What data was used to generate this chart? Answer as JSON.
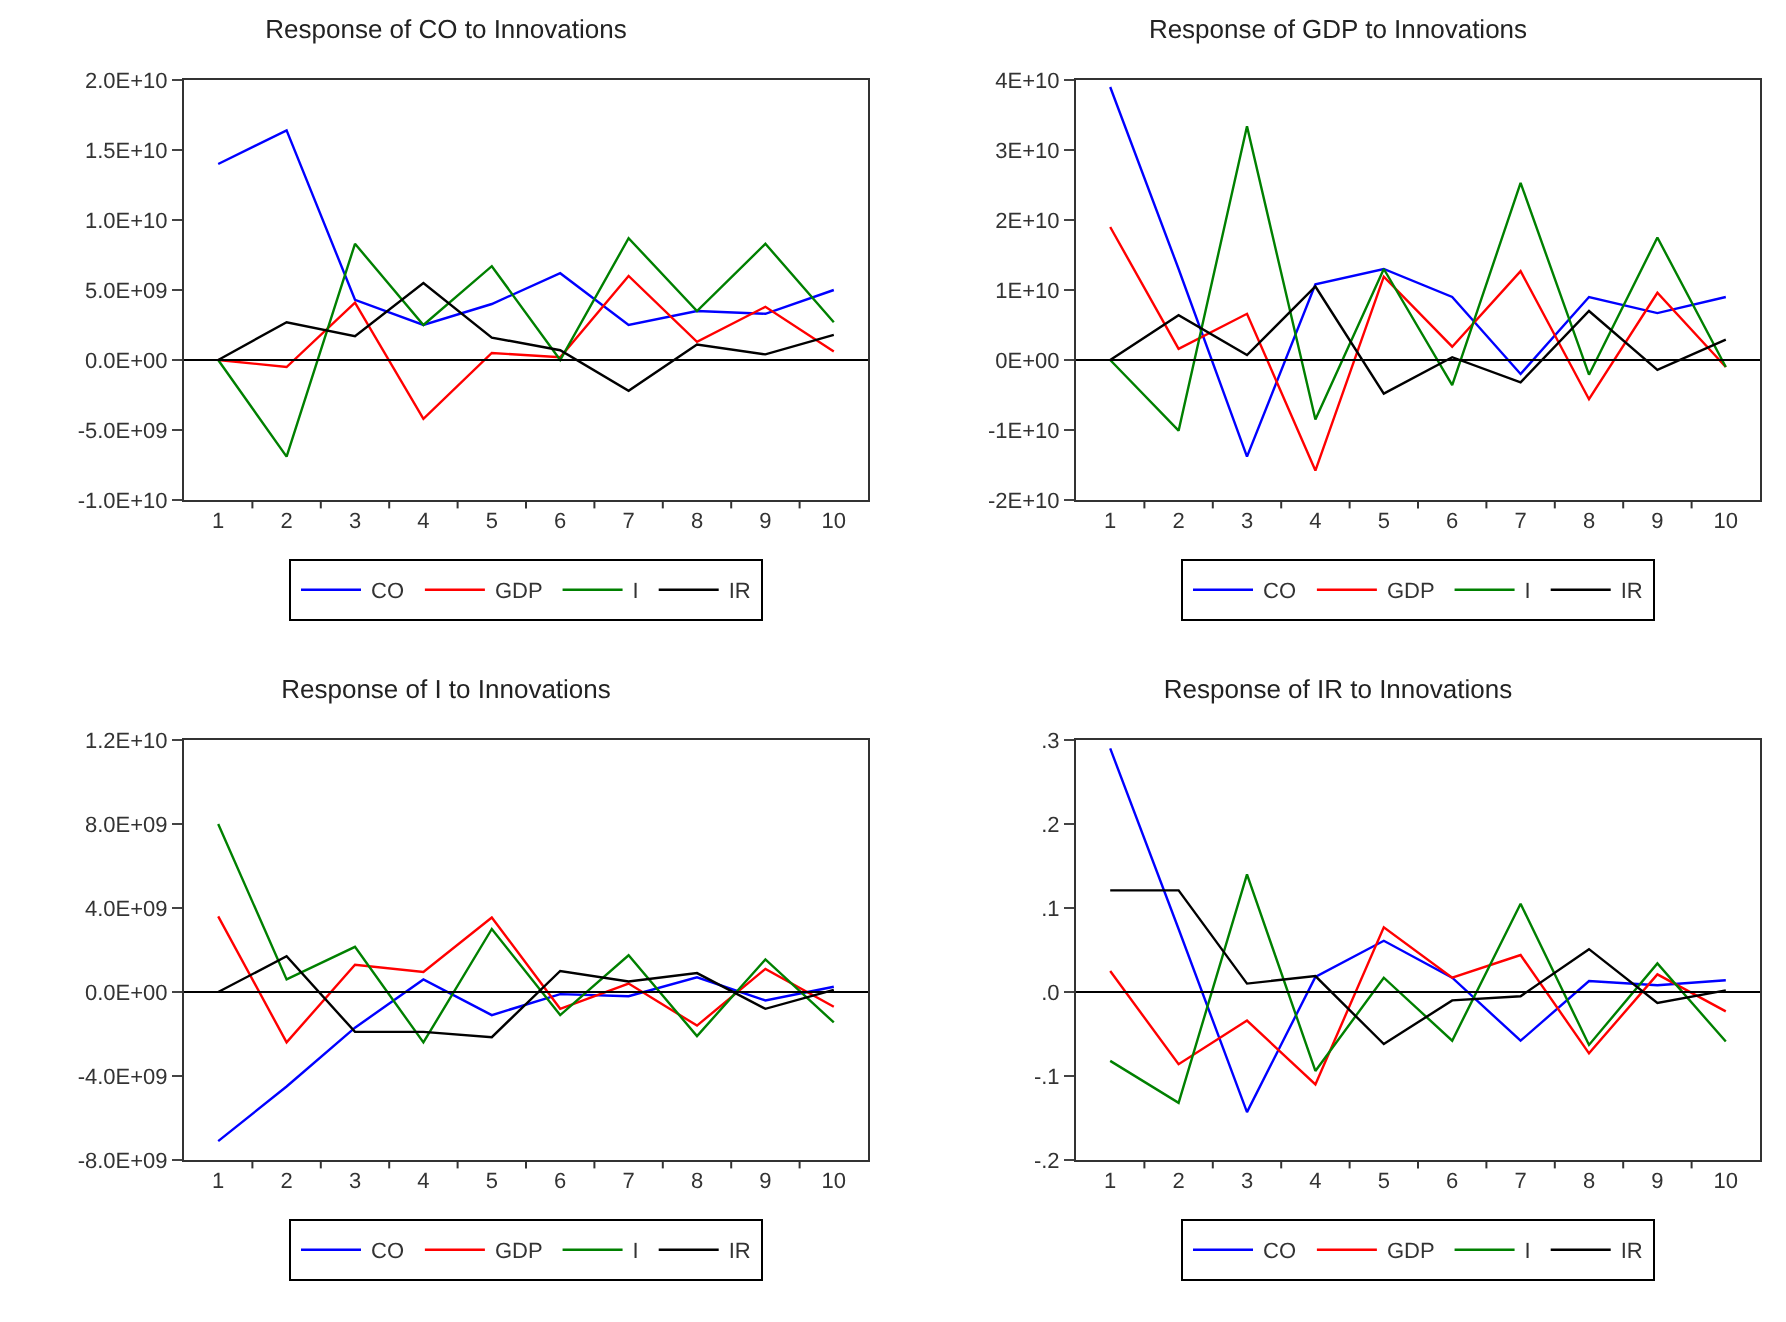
{
  "chart_data": [
    {
      "type": "line",
      "title": "Response of CO to Innovations",
      "categories": [
        "1",
        "2",
        "3",
        "4",
        "5",
        "6",
        "7",
        "8",
        "9",
        "10"
      ],
      "ylim": [
        -10000000000.0,
        20000000000.0
      ],
      "yticks": [
        {
          "value": -10000000000.0,
          "label": "-1.0E+10"
        },
        {
          "value": -5000000000.0,
          "label": "-5.0E+09"
        },
        {
          "value": 0,
          "label": "0.0E+00"
        },
        {
          "value": 5000000000.0,
          "label": "5.0E+09"
        },
        {
          "value": 10000000000.0,
          "label": "1.0E+10"
        },
        {
          "value": 15000000000.0,
          "label": "1.5E+10"
        },
        {
          "value": 20000000000.0,
          "label": "2.0E+10"
        }
      ],
      "grid": false,
      "legend": "bottom",
      "marker": "none",
      "line_style": "solid",
      "ref_lines": [
        {
          "axis": "y",
          "value": 0,
          "color": "#000000"
        }
      ],
      "series": [
        {
          "name": "CO",
          "color": "#0000ff",
          "values": [
            14000000000.0,
            16400000000.0,
            4300000000.0,
            2500000000.0,
            4000000000.0,
            6200000000.0,
            2500000000.0,
            3500000000.0,
            3300000000.0,
            5000000000.0
          ]
        },
        {
          "name": "GDP",
          "color": "#ff0000",
          "values": [
            0,
            -500000000.0,
            4100000000.0,
            -4200000000.0,
            500000000.0,
            200000000.0,
            6000000000.0,
            1300000000.0,
            3800000000.0,
            600000000.0
          ]
        },
        {
          "name": "I",
          "color": "#008000",
          "values": [
            0,
            -6900000000.0,
            8300000000.0,
            2500000000.0,
            6700000000.0,
            0,
            8700000000.0,
            3500000000.0,
            8300000000.0,
            2700000000.0
          ]
        },
        {
          "name": "IR",
          "color": "#000000",
          "values": [
            0,
            2700000000.0,
            1700000000.0,
            5500000000.0,
            1600000000.0,
            700000000.0,
            -2200000000.0,
            1100000000.0,
            400000000.0,
            1800000000.0
          ]
        }
      ]
    },
    {
      "type": "line",
      "title": "Response of GDP to Innovations",
      "categories": [
        "1",
        "2",
        "3",
        "4",
        "5",
        "6",
        "7",
        "8",
        "9",
        "10"
      ],
      "ylim": [
        -20000000000.0,
        40000000000.0
      ],
      "yticks": [
        {
          "value": -20000000000.0,
          "label": "-2E+10"
        },
        {
          "value": -10000000000.0,
          "label": "-1E+10"
        },
        {
          "value": 0,
          "label": "0E+00"
        },
        {
          "value": 10000000000.0,
          "label": "1E+10"
        },
        {
          "value": 20000000000.0,
          "label": "2E+10"
        },
        {
          "value": 30000000000.0,
          "label": "3E+10"
        },
        {
          "value": 40000000000.0,
          "label": "4E+10"
        }
      ],
      "grid": false,
      "legend": "bottom",
      "marker": "none",
      "line_style": "solid",
      "ref_lines": [
        {
          "axis": "y",
          "value": 0,
          "color": "#000000"
        }
      ],
      "series": [
        {
          "name": "CO",
          "color": "#0000ff",
          "values": [
            39000000000.0,
            13000000000.0,
            -13800000000.0,
            10800000000.0,
            13000000000.0,
            9000000000.0,
            -2000000000.0,
            9000000000.0,
            6700000000.0,
            9000000000.0
          ]
        },
        {
          "name": "GDP",
          "color": "#ff0000",
          "values": [
            19000000000.0,
            1600000000.0,
            6600000000.0,
            -15800000000.0,
            11900000000.0,
            1900000000.0,
            12700000000.0,
            -5600000000.0,
            9600000000.0,
            -1000000000.0
          ]
        },
        {
          "name": "I",
          "color": "#008000",
          "values": [
            0,
            -10100000000.0,
            33400000000.0,
            -8500000000.0,
            13000000000.0,
            -3600000000.0,
            25300000000.0,
            -2100000000.0,
            17500000000.0,
            -1000000000.0
          ]
        },
        {
          "name": "IR",
          "color": "#000000",
          "values": [
            0,
            6400000000.0,
            700000000.0,
            10500000000.0,
            -4800000000.0,
            400000000.0,
            -3200000000.0,
            7000000000.0,
            -1400000000.0,
            2900000000.0
          ]
        }
      ]
    },
    {
      "type": "line",
      "title": "Response of I to Innovations",
      "categories": [
        "1",
        "2",
        "3",
        "4",
        "5",
        "6",
        "7",
        "8",
        "9",
        "10"
      ],
      "ylim": [
        -8000000000.0,
        12000000000.0
      ],
      "yticks": [
        {
          "value": -8000000000.0,
          "label": "-8.0E+09"
        },
        {
          "value": -4000000000.0,
          "label": "-4.0E+09"
        },
        {
          "value": 0,
          "label": "0.0E+00"
        },
        {
          "value": 4000000000.0,
          "label": "4.0E+09"
        },
        {
          "value": 8000000000.0,
          "label": "8.0E+09"
        },
        {
          "value": 12000000000.0,
          "label": "1.2E+10"
        }
      ],
      "grid": false,
      "legend": "bottom",
      "marker": "none",
      "line_style": "solid",
      "ref_lines": [
        {
          "axis": "y",
          "value": 0,
          "color": "#000000"
        }
      ],
      "series": [
        {
          "name": "CO",
          "color": "#0000ff",
          "values": [
            -7100000000.0,
            -4500000000.0,
            -1700000000.0,
            600000000.0,
            -1100000000.0,
            -100000000.0,
            -200000000.0,
            700000000.0,
            -400000000.0,
            250000000.0
          ]
        },
        {
          "name": "GDP",
          "color": "#ff0000",
          "values": [
            3600000000.0,
            -2400000000.0,
            1300000000.0,
            950000000.0,
            3550000000.0,
            -800000000.0,
            400000000.0,
            -1600000000.0,
            1100000000.0,
            -700000000.0
          ]
        },
        {
          "name": "I",
          "color": "#008000",
          "values": [
            8000000000.0,
            600000000.0,
            2150000000.0,
            -2400000000.0,
            3000000000.0,
            -1100000000.0,
            1750000000.0,
            -2100000000.0,
            1550000000.0,
            -1450000000.0
          ]
        },
        {
          "name": "IR",
          "color": "#000000",
          "values": [
            0,
            1700000000.0,
            -1900000000.0,
            -1900000000.0,
            -2150000000.0,
            1000000000.0,
            500000000.0,
            900000000.0,
            -800000000.0,
            100000000.0
          ]
        }
      ]
    },
    {
      "type": "line",
      "title": "Response of IR to Innovations",
      "categories": [
        "1",
        "2",
        "3",
        "4",
        "5",
        "6",
        "7",
        "8",
        "9",
        "10"
      ],
      "ylim": [
        -0.2,
        0.3
      ],
      "yticks": [
        {
          "value": -0.2,
          "label": "-.2"
        },
        {
          "value": -0.1,
          "label": "-.1"
        },
        {
          "value": 0,
          "label": ".0"
        },
        {
          "value": 0.1,
          "label": ".1"
        },
        {
          "value": 0.2,
          "label": ".2"
        },
        {
          "value": 0.3,
          "label": ".3"
        }
      ],
      "grid": false,
      "legend": "bottom",
      "marker": "none",
      "line_style": "solid",
      "ref_lines": [
        {
          "axis": "y",
          "value": 0,
          "color": "#000000"
        }
      ],
      "series": [
        {
          "name": "CO",
          "color": "#0000ff",
          "values": [
            0.29,
            0.075,
            -0.143,
            0.018,
            0.061,
            0.017,
            -0.058,
            0.013,
            0.008,
            0.014
          ]
        },
        {
          "name": "GDP",
          "color": "#ff0000",
          "values": [
            0.025,
            -0.086,
            -0.034,
            -0.11,
            0.077,
            0.017,
            0.044,
            -0.073,
            0.021,
            -0.023
          ]
        },
        {
          "name": "I",
          "color": "#008000",
          "values": [
            -0.082,
            -0.132,
            0.14,
            -0.094,
            0.017,
            -0.058,
            0.105,
            -0.063,
            0.034,
            -0.059
          ]
        },
        {
          "name": "IR",
          "color": "#000000",
          "values": [
            0.121,
            0.121,
            0.01,
            0.019,
            -0.062,
            -0.01,
            -0.005,
            0.051,
            -0.013,
            0.002
          ]
        }
      ]
    }
  ]
}
